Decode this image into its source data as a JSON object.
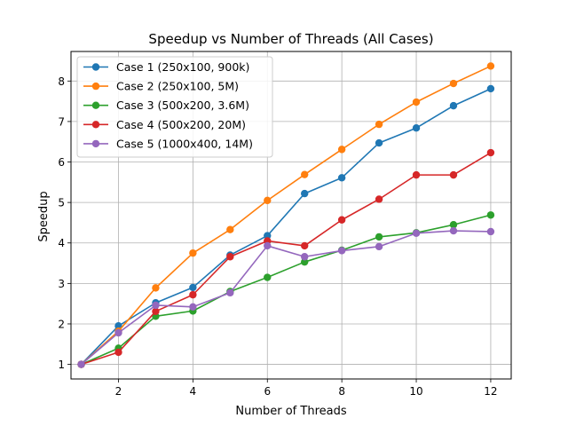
{
  "chart_data": {
    "type": "line",
    "title": "Speedup vs Number of Threads (All Cases)",
    "xlabel": "Number of Threads",
    "ylabel": "Speedup",
    "x": [
      1,
      2,
      3,
      4,
      5,
      6,
      7,
      8,
      9,
      10,
      11,
      12
    ],
    "xlim": [
      0.725,
      12.55
    ],
    "ylim": [
      0.64,
      8.73
    ],
    "xticks": [
      2,
      4,
      6,
      8,
      10,
      12
    ],
    "yticks": [
      1,
      2,
      3,
      4,
      5,
      6,
      7,
      8
    ],
    "grid": true,
    "legend_position": "top-left",
    "series": [
      {
        "name": "Case 1 (250x100, 900k)",
        "color": "#1f77b4",
        "values": [
          1.0,
          1.95,
          2.52,
          2.9,
          3.7,
          4.18,
          5.22,
          5.61,
          6.47,
          6.84,
          7.39,
          7.81
        ]
      },
      {
        "name": "Case 2 (250x100, 5M)",
        "color": "#ff7f0e",
        "values": [
          1.0,
          1.82,
          2.89,
          3.75,
          4.33,
          5.05,
          5.69,
          6.31,
          6.93,
          7.48,
          7.94,
          8.37
        ]
      },
      {
        "name": "Case 3 (500x200, 3.6M)",
        "color": "#2ca02c",
        "values": [
          1.0,
          1.4,
          2.19,
          2.32,
          2.8,
          3.15,
          3.53,
          3.82,
          4.15,
          4.25,
          4.45,
          4.69
        ]
      },
      {
        "name": "Case 4 (500x200, 20M)",
        "color": "#d62728",
        "values": [
          1.0,
          1.3,
          2.31,
          2.72,
          3.66,
          4.05,
          3.93,
          4.57,
          5.08,
          5.68,
          5.68,
          6.23
        ]
      },
      {
        "name": "Case 5 (1000x400, 14M)",
        "color": "#9467bd",
        "values": [
          1.0,
          1.78,
          2.46,
          2.42,
          2.77,
          3.93,
          3.66,
          3.81,
          3.91,
          4.24,
          4.3,
          4.28
        ]
      }
    ]
  }
}
